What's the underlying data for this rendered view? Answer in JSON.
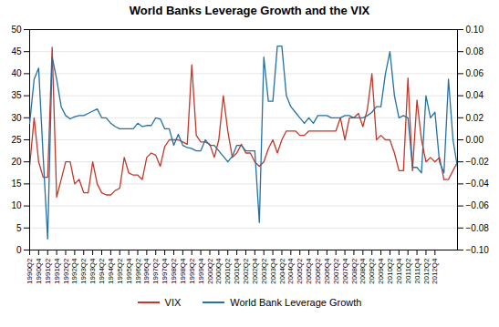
{
  "chart_data": {
    "type": "line",
    "title": "World Banks Leverage Growth and the VIX",
    "categories": [
      "1990Q2",
      null,
      "1990Q4",
      null,
      "1991Q2",
      null,
      "1991Q4",
      null,
      "1992Q2",
      null,
      "1992Q4",
      null,
      "1993Q2",
      null,
      "1993Q4",
      null,
      "1994Q2",
      null,
      "1994Q4",
      null,
      "1995Q2",
      null,
      "1995Q4",
      null,
      "1996Q2",
      null,
      "1996Q4",
      null,
      "1997Q2",
      null,
      "1997Q4",
      null,
      "1998Q2",
      null,
      "1998Q4",
      null,
      "1999Q2",
      null,
      "1999Q4",
      null,
      "2000Q2",
      null,
      "2000Q4",
      null,
      "2001Q2",
      null,
      "2001Q4",
      null,
      "2002Q2",
      null,
      "2002Q4",
      null,
      "2003Q2",
      null,
      "2003Q4",
      null,
      "2004Q2",
      null,
      "2004Q4",
      null,
      "2005Q2",
      null,
      "2005Q4",
      null,
      "2006Q2",
      null,
      "2006Q4",
      null,
      "2007Q2",
      null,
      "2007Q4",
      null,
      "2008Q2",
      null,
      "2008Q4",
      null,
      "2009Q2",
      null,
      "2009Q4",
      null,
      "2010Q2",
      null,
      "2010Q4",
      null,
      "2011Q2",
      null,
      "2011Q4",
      null,
      "2012Q2",
      null,
      "2012Q4",
      null,
      null,
      null,
      null,
      null
    ],
    "series": [
      {
        "name": "VIX",
        "color": "#c0392b",
        "values": [
          19,
          30,
          20,
          16.5,
          16.5,
          46,
          12,
          16,
          20,
          20,
          15,
          16,
          13,
          13,
          20,
          15,
          13,
          12.5,
          12.5,
          13.5,
          14,
          21,
          17.5,
          17,
          17,
          16,
          21,
          22,
          21.5,
          19,
          23.5,
          25,
          25,
          25,
          24.5,
          24,
          42,
          26,
          24.5,
          24.5,
          24,
          21,
          25,
          35,
          27,
          21,
          22,
          24,
          22,
          22,
          20,
          19,
          20,
          23,
          25,
          22,
          25,
          27,
          27,
          27,
          26,
          26,
          27,
          27,
          27,
          27,
          27,
          27,
          27,
          30,
          25,
          30,
          30,
          31,
          28,
          32,
          40,
          25,
          26,
          25,
          25,
          22,
          18,
          18,
          39,
          18,
          34,
          25,
          20,
          21,
          20,
          21,
          16,
          16,
          18,
          20
        ]
      },
      {
        "name": "World Bank Leverage Growth",
        "color": "#2471a3",
        "axis": "y2",
        "values": [
          0.015,
          0.055,
          0.065,
          -0.015,
          -0.09,
          0.075,
          0.055,
          0.03,
          0.022,
          0.019,
          0.021,
          0.022,
          0.022,
          0.024,
          0.026,
          0.028,
          0.02,
          0.02,
          0.015,
          0.012,
          0.01,
          0.01,
          0.01,
          0.01,
          0.015,
          0.012,
          0.013,
          0.013,
          0.02,
          0.019,
          0.01,
          0.01,
          -0.005,
          0.005,
          -0.005,
          -0.007,
          -0.008,
          -0.01,
          -0.01,
          0.0,
          -0.005,
          -0.005,
          -0.01,
          -0.015,
          -0.02,
          -0.015,
          -0.005,
          -0.005,
          -0.01,
          -0.01,
          -0.01,
          -0.075,
          0.075,
          0.035,
          0.035,
          0.085,
          0.085,
          0.04,
          0.03,
          0.025,
          0.02,
          0.015,
          0.02,
          0.015,
          0.022,
          0.022,
          0.022,
          0.02,
          0.02,
          0.02,
          0.022,
          0.022,
          0.02,
          0.02,
          0.02,
          0.022,
          0.025,
          0.03,
          0.03,
          0.06,
          0.08,
          0.04,
          0.02,
          0.022,
          0.02,
          -0.025,
          -0.025,
          -0.03,
          0.04,
          0.02,
          0.025,
          -0.02,
          -0.03,
          0.055,
          0.0,
          -0.025
        ]
      }
    ],
    "ylim": [
      0,
      50
    ],
    "yticks": [
      0,
      5,
      10,
      15,
      20,
      25,
      30,
      35,
      40,
      45,
      50
    ],
    "y2lim": [
      -0.1,
      0.1
    ],
    "y2ticks": [
      {
        "value": -0.1,
        "label": "−0.10"
      },
      {
        "value": -0.08,
        "label": "−0.08"
      },
      {
        "value": -0.06,
        "label": "−0.06"
      },
      {
        "value": -0.04,
        "label": "−0.04"
      },
      {
        "value": -0.02,
        "label": "−0.02"
      },
      {
        "value": 0,
        "label": "0.00"
      },
      0.02,
      0.04,
      0.06,
      0.08,
      {
        "value": 0.1,
        "label": "0.10"
      }
    ],
    "grid": true,
    "legend": "bottom"
  }
}
